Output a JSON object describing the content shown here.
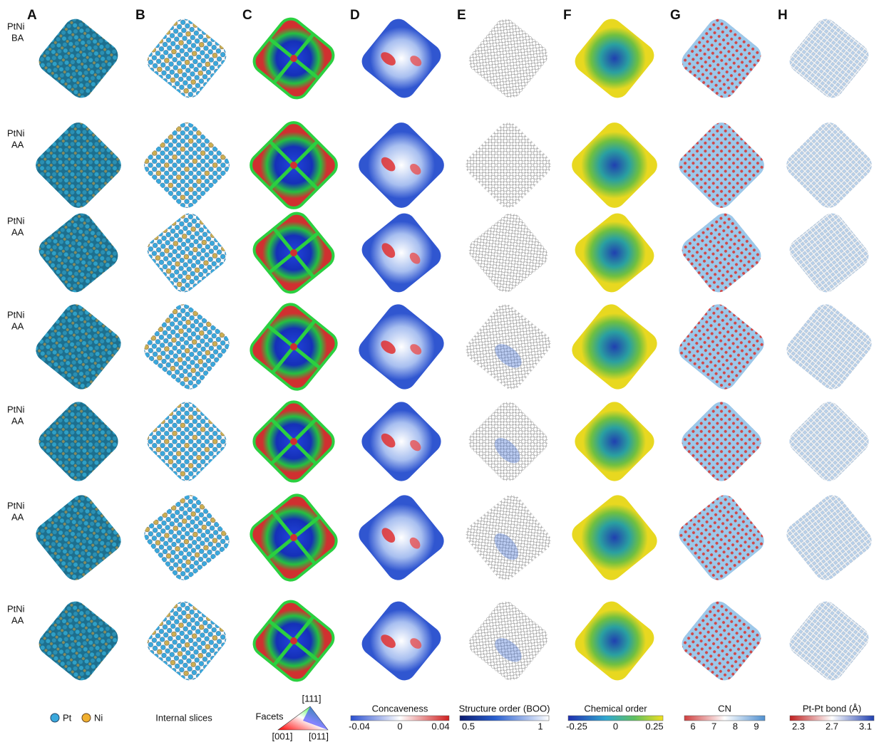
{
  "columns": [
    "A",
    "B",
    "C",
    "D",
    "E",
    "F",
    "G",
    "H"
  ],
  "rows": [
    {
      "line1": "PtNi",
      "line2": "BA"
    },
    {
      "line1": "PtNi",
      "line2": "AA"
    },
    {
      "line1": "PtNi",
      "line2": "AA"
    },
    {
      "line1": "PtNi",
      "line2": "AA"
    },
    {
      "line1": "PtNi",
      "line2": "AA"
    },
    {
      "line1": "PtNi",
      "line2": "AA"
    },
    {
      "line1": "PtNi",
      "line2": "AA"
    }
  ],
  "legend": {
    "pt": "Pt",
    "ni": "Ni",
    "slices": "Internal slices",
    "facets": {
      "title": "Facets",
      "top": "[111]",
      "left": "[001]",
      "right": "[011]"
    },
    "colorbars": [
      {
        "title": "Concaveness",
        "ticks": [
          "-0.04",
          "0",
          "0.04"
        ]
      },
      {
        "title": "Structure order (BOO)",
        "ticks": [
          "0.5",
          "1"
        ]
      },
      {
        "title": "Chemical order",
        "ticks": [
          "-0.25",
          "0",
          "0.25"
        ]
      },
      {
        "title": "CN",
        "ticks": [
          "6",
          "7",
          "8",
          "9"
        ]
      },
      {
        "title": "Pt-Pt bond (Å)",
        "ticks": [
          "2.3",
          "2.7",
          "3.1"
        ]
      }
    ]
  }
}
